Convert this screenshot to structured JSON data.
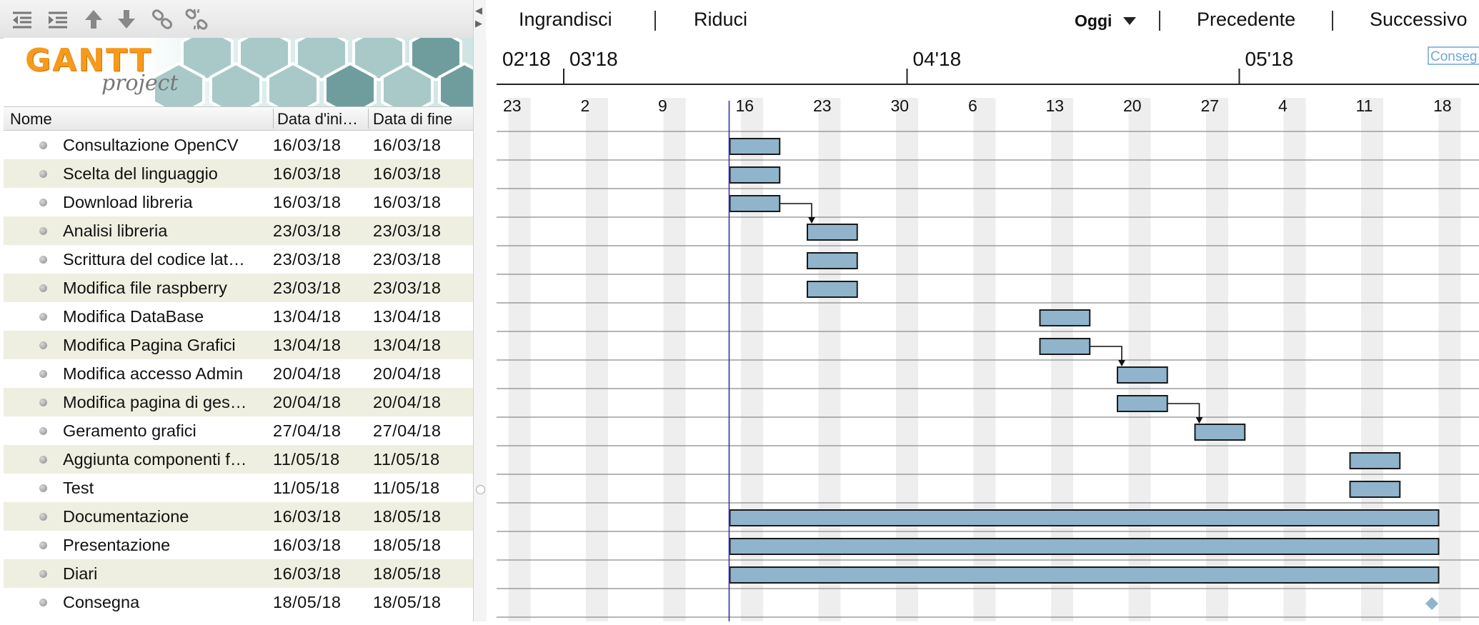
{
  "toolbar": {
    "icons": [
      "outdent-icon",
      "indent-icon",
      "move-up-icon",
      "move-down-icon",
      "link-icon",
      "unlink-icon"
    ]
  },
  "logo": {
    "word": "GANTT",
    "sub": "project"
  },
  "columns": {
    "name": "Nome",
    "start": "Data d'ini…",
    "end": "Data di fine"
  },
  "tasks": [
    {
      "name": "Consultazione OpenCV",
      "start": "16/03/18",
      "end": "16/03/18"
    },
    {
      "name": "Scelta del linguaggio",
      "start": "16/03/18",
      "end": "16/03/18"
    },
    {
      "name": "Download libreria",
      "start": "16/03/18",
      "end": "16/03/18"
    },
    {
      "name": "Analisi libreria",
      "start": "23/03/18",
      "end": "23/03/18"
    },
    {
      "name": "Scrittura del codice lat…",
      "start": "23/03/18",
      "end": "23/03/18"
    },
    {
      "name": "Modifica file raspberry",
      "start": "23/03/18",
      "end": "23/03/18"
    },
    {
      "name": "Modifica DataBase",
      "start": "13/04/18",
      "end": "13/04/18"
    },
    {
      "name": "Modifica Pagina Grafici",
      "start": "13/04/18",
      "end": "13/04/18"
    },
    {
      "name": "Modifica accesso Admin",
      "start": "20/04/18",
      "end": "20/04/18"
    },
    {
      "name": "Modifica pagina di ges…",
      "start": "20/04/18",
      "end": "20/04/18"
    },
    {
      "name": "Geramento grafici",
      "start": "27/04/18",
      "end": "27/04/18"
    },
    {
      "name": "Aggiunta componenti f…",
      "start": "11/05/18",
      "end": "11/05/18"
    },
    {
      "name": "Test",
      "start": "11/05/18",
      "end": "11/05/18"
    },
    {
      "name": "Documentazione",
      "start": "16/03/18",
      "end": "18/05/18"
    },
    {
      "name": "Presentazione",
      "start": "16/03/18",
      "end": "18/05/18"
    },
    {
      "name": "Diari",
      "start": "16/03/18",
      "end": "18/05/18"
    },
    {
      "name": "Consegna",
      "start": "18/05/18",
      "end": "18/05/18",
      "milestone": true
    }
  ],
  "nav": {
    "zoom_in": "Ingrandisci",
    "zoom_out": "Riduci",
    "today": "Oggi",
    "prev": "Precedente",
    "next": "Successivo"
  },
  "timeline": {
    "months": [
      "02'18",
      "03'18",
      "04'18",
      "05'18"
    ],
    "week_labels": [
      "23",
      "2",
      "9",
      "16",
      "23",
      "30",
      "6",
      "13",
      "20",
      "27",
      "4",
      "11",
      "18"
    ],
    "today_line_label": "16",
    "clipped_label": "Conseg"
  },
  "colors": {
    "bar_fill": "#8fb4cc",
    "bar_stroke": "#1a1a1a",
    "milestone": "#8fb4cc",
    "today_line": "#3333aa",
    "weekend": "#eeeeee",
    "row_alt": "#efefe1"
  },
  "chart_data": {
    "type": "gantt",
    "x_axis": "date",
    "bars": [
      {
        "task": "Consultazione OpenCV",
        "start": "2018-03-16",
        "end": "2018-03-16"
      },
      {
        "task": "Scelta del linguaggio",
        "start": "2018-03-16",
        "end": "2018-03-16"
      },
      {
        "task": "Download libreria",
        "start": "2018-03-16",
        "end": "2018-03-16"
      },
      {
        "task": "Analisi libreria",
        "start": "2018-03-23",
        "end": "2018-03-23"
      },
      {
        "task": "Scrittura del codice lat…",
        "start": "2018-03-23",
        "end": "2018-03-23"
      },
      {
        "task": "Modifica file raspberry",
        "start": "2018-03-23",
        "end": "2018-03-23"
      },
      {
        "task": "Modifica DataBase",
        "start": "2018-04-13",
        "end": "2018-04-13"
      },
      {
        "task": "Modifica Pagina Grafici",
        "start": "2018-04-13",
        "end": "2018-04-13"
      },
      {
        "task": "Modifica accesso Admin",
        "start": "2018-04-20",
        "end": "2018-04-20"
      },
      {
        "task": "Modifica pagina di ges…",
        "start": "2018-04-20",
        "end": "2018-04-20"
      },
      {
        "task": "Geramento grafici",
        "start": "2018-04-27",
        "end": "2018-04-27"
      },
      {
        "task": "Aggiunta componenti f…",
        "start": "2018-05-11",
        "end": "2018-05-11"
      },
      {
        "task": "Test",
        "start": "2018-05-11",
        "end": "2018-05-11"
      },
      {
        "task": "Documentazione",
        "start": "2018-03-16",
        "end": "2018-05-18"
      },
      {
        "task": "Presentazione",
        "start": "2018-03-16",
        "end": "2018-05-18"
      },
      {
        "task": "Diari",
        "start": "2018-03-16",
        "end": "2018-05-18"
      }
    ],
    "milestones": [
      {
        "task": "Consegna",
        "date": "2018-05-18"
      }
    ],
    "dependencies": [
      {
        "from": "Download libreria",
        "to": "Analisi libreria"
      },
      {
        "from": "Modifica Pagina Grafici",
        "to": "Modifica accesso Admin"
      },
      {
        "from": "Modifica pagina di ges…",
        "to": "Geramento grafici"
      }
    ],
    "today": "2018-03-16"
  }
}
